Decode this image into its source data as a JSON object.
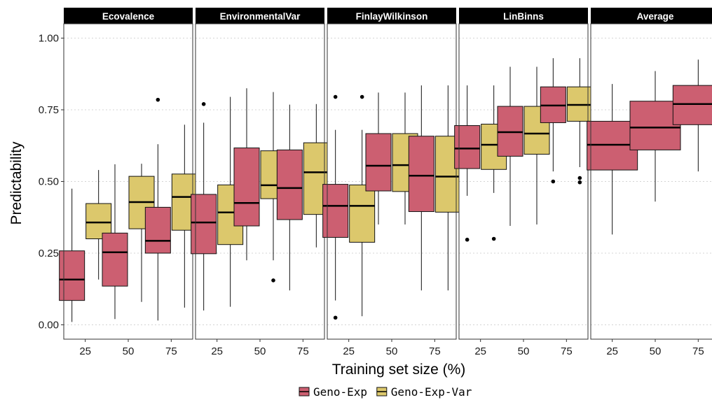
{
  "colors": {
    "Geno-Exp": "#cc5f71",
    "Geno-Exp-Var": "#dcc86c",
    "strip_bg": "#000000",
    "grid": "#d4d4d4"
  },
  "chart_data": {
    "type": "box",
    "xlabel": "Training set size (%)",
    "ylabel": "Predictability",
    "ylim": [
      -0.05,
      1.05
    ],
    "yticks": [
      0.0,
      0.25,
      0.5,
      0.75,
      1.0
    ],
    "ytick_labels": [
      "0.00",
      "0.25",
      "0.50",
      "0.75",
      "1.00"
    ],
    "categories": [
      "25",
      "50",
      "75"
    ],
    "grid": "horizontal dotted",
    "legend": {
      "position": "bottom",
      "entries": [
        "Geno-Exp",
        "Geno-Exp-Var"
      ]
    },
    "panels": [
      {
        "title": "Ecovalence",
        "boxes": [
          {
            "x": "25",
            "series": "Geno-Exp",
            "low": 0.01,
            "q1": 0.085,
            "median": 0.158,
            "q3": 0.258,
            "high": 0.475,
            "outliers": []
          },
          {
            "x": "25",
            "series": "Geno-Exp-Var",
            "low": 0.158,
            "q1": 0.3,
            "median": 0.357,
            "q3": 0.423,
            "high": 0.54,
            "outliers": []
          },
          {
            "x": "50",
            "series": "Geno-Exp",
            "low": 0.02,
            "q1": 0.135,
            "median": 0.253,
            "q3": 0.32,
            "high": 0.56,
            "outliers": []
          },
          {
            "x": "50",
            "series": "Geno-Exp-Var",
            "low": 0.08,
            "q1": 0.335,
            "median": 0.428,
            "q3": 0.518,
            "high": 0.562,
            "outliers": []
          },
          {
            "x": "75",
            "series": "Geno-Exp",
            "low": 0.015,
            "q1": 0.25,
            "median": 0.293,
            "q3": 0.41,
            "high": 0.63,
            "outliers": [
              0.785
            ]
          },
          {
            "x": "75",
            "series": "Geno-Exp-Var",
            "low": 0.06,
            "q1": 0.33,
            "median": 0.446,
            "q3": 0.526,
            "high": 0.698,
            "outliers": []
          }
        ]
      },
      {
        "title": "EnvironmentalVar",
        "boxes": [
          {
            "x": "25",
            "series": "Geno-Exp",
            "low": 0.05,
            "q1": 0.248,
            "median": 0.357,
            "q3": 0.455,
            "high": 0.705,
            "outliers": [
              0.77
            ]
          },
          {
            "x": "25",
            "series": "Geno-Exp-Var",
            "low": 0.063,
            "q1": 0.28,
            "median": 0.392,
            "q3": 0.488,
            "high": 0.795,
            "outliers": []
          },
          {
            "x": "50",
            "series": "Geno-Exp",
            "low": 0.225,
            "q1": 0.345,
            "median": 0.425,
            "q3": 0.617,
            "high": 0.825,
            "outliers": []
          },
          {
            "x": "50",
            "series": "Geno-Exp-Var",
            "low": 0.225,
            "q1": 0.44,
            "median": 0.487,
            "q3": 0.607,
            "high": 0.812,
            "outliers": [
              0.155
            ]
          },
          {
            "x": "75",
            "series": "Geno-Exp",
            "low": 0.12,
            "q1": 0.367,
            "median": 0.477,
            "q3": 0.61,
            "high": 0.768,
            "outliers": []
          },
          {
            "x": "75",
            "series": "Geno-Exp-Var",
            "low": 0.27,
            "q1": 0.385,
            "median": 0.532,
            "q3": 0.635,
            "high": 0.77,
            "outliers": []
          }
        ]
      },
      {
        "title": "FinlayWilkinson",
        "boxes": [
          {
            "x": "25",
            "series": "Geno-Exp",
            "low": 0.085,
            "q1": 0.305,
            "median": 0.415,
            "q3": 0.49,
            "high": 0.68,
            "outliers": [
              0.795,
              0.025
            ]
          },
          {
            "x": "25",
            "series": "Geno-Exp-Var",
            "low": 0.03,
            "q1": 0.288,
            "median": 0.415,
            "q3": 0.488,
            "high": 0.68,
            "outliers": [
              0.795
            ]
          },
          {
            "x": "50",
            "series": "Geno-Exp",
            "low": 0.35,
            "q1": 0.467,
            "median": 0.555,
            "q3": 0.667,
            "high": 0.81,
            "outliers": []
          },
          {
            "x": "50",
            "series": "Geno-Exp-Var",
            "low": 0.35,
            "q1": 0.465,
            "median": 0.557,
            "q3": 0.667,
            "high": 0.81,
            "outliers": []
          },
          {
            "x": "75",
            "series": "Geno-Exp",
            "low": 0.12,
            "q1": 0.395,
            "median": 0.52,
            "q3": 0.658,
            "high": 0.835,
            "outliers": []
          },
          {
            "x": "75",
            "series": "Geno-Exp-Var",
            "low": 0.12,
            "q1": 0.393,
            "median": 0.517,
            "q3": 0.658,
            "high": 0.835,
            "outliers": []
          }
        ]
      },
      {
        "title": "LinBinns",
        "boxes": [
          {
            "x": "25",
            "series": "Geno-Exp",
            "low": 0.45,
            "q1": 0.545,
            "median": 0.615,
            "q3": 0.695,
            "high": 0.835,
            "outliers": [
              0.297
            ]
          },
          {
            "x": "25",
            "series": "Geno-Exp-Var",
            "low": 0.46,
            "q1": 0.542,
            "median": 0.628,
            "q3": 0.7,
            "high": 0.835,
            "outliers": [
              0.3
            ]
          },
          {
            "x": "50",
            "series": "Geno-Exp",
            "low": 0.345,
            "q1": 0.588,
            "median": 0.672,
            "q3": 0.762,
            "high": 0.9,
            "outliers": []
          },
          {
            "x": "50",
            "series": "Geno-Exp-Var",
            "low": 0.35,
            "q1": 0.595,
            "median": 0.667,
            "q3": 0.762,
            "high": 0.9,
            "outliers": []
          },
          {
            "x": "75",
            "series": "Geno-Exp",
            "low": 0.535,
            "q1": 0.705,
            "median": 0.765,
            "q3": 0.83,
            "high": 0.93,
            "outliers": [
              0.5
            ]
          },
          {
            "x": "75",
            "series": "Geno-Exp-Var",
            "low": 0.55,
            "q1": 0.71,
            "median": 0.767,
            "q3": 0.83,
            "high": 0.93,
            "outliers": [
              0.512,
              0.497
            ]
          }
        ]
      },
      {
        "title": "Average",
        "boxes": [
          {
            "x": "25",
            "series": "Geno-Exp",
            "low": 0.315,
            "q1": 0.54,
            "median": 0.628,
            "q3": 0.71,
            "high": 0.84,
            "outliers": []
          },
          {
            "x": "50",
            "series": "Geno-Exp",
            "low": 0.43,
            "q1": 0.61,
            "median": 0.688,
            "q3": 0.78,
            "high": 0.885,
            "outliers": []
          },
          {
            "x": "75",
            "series": "Geno-Exp",
            "low": 0.535,
            "q1": 0.698,
            "median": 0.77,
            "q3": 0.835,
            "high": 0.925,
            "outliers": []
          }
        ]
      }
    ]
  }
}
